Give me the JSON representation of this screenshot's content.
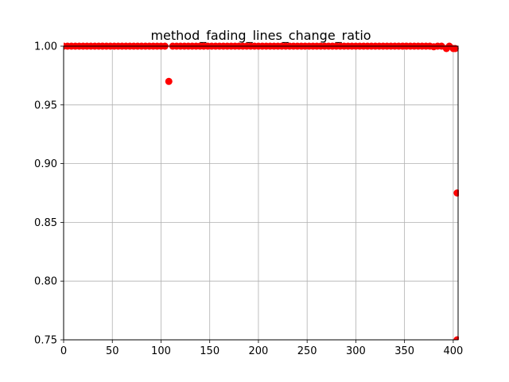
{
  "chart_data": {
    "type": "scatter",
    "title": "method_fading_lines_change_ratio",
    "xlabel": "",
    "ylabel": "",
    "xlim": [
      0,
      405
    ],
    "ylim": [
      0.75,
      1.0
    ],
    "xticks": [
      0,
      50,
      100,
      150,
      200,
      250,
      300,
      350,
      400
    ],
    "yticks": [
      0.75,
      0.8,
      0.85,
      0.9,
      0.95,
      1.0
    ],
    "xtick_labels": [
      "0",
      "50",
      "100",
      "150",
      "200",
      "250",
      "300",
      "350",
      "400"
    ],
    "ytick_labels": [
      "0.75",
      "0.80",
      "0.85",
      "0.90",
      "0.95",
      "1.00"
    ],
    "grid": true,
    "marker_color": "#ff0000",
    "series": [
      {
        "points": [
          [
            0,
            1.0
          ],
          [
            4,
            1.0
          ],
          [
            8,
            1.0
          ],
          [
            12,
            1.0
          ],
          [
            16,
            1.0
          ],
          [
            20,
            1.0
          ],
          [
            24,
            1.0
          ],
          [
            28,
            1.0
          ],
          [
            32,
            1.0
          ],
          [
            36,
            1.0
          ],
          [
            40,
            1.0
          ],
          [
            44,
            1.0
          ],
          [
            48,
            1.0
          ],
          [
            52,
            1.0
          ],
          [
            56,
            1.0
          ],
          [
            60,
            1.0
          ],
          [
            64,
            1.0
          ],
          [
            68,
            1.0
          ],
          [
            72,
            1.0
          ],
          [
            76,
            1.0
          ],
          [
            80,
            1.0
          ],
          [
            84,
            1.0
          ],
          [
            88,
            1.0
          ],
          [
            92,
            1.0
          ],
          [
            96,
            1.0
          ],
          [
            100,
            1.0
          ],
          [
            104,
            1.0
          ],
          [
            108,
            0.97
          ],
          [
            112,
            1.0
          ],
          [
            116,
            1.0
          ],
          [
            120,
            1.0
          ],
          [
            124,
            1.0
          ],
          [
            128,
            1.0
          ],
          [
            132,
            1.0
          ],
          [
            136,
            1.0
          ],
          [
            140,
            1.0
          ],
          [
            144,
            1.0
          ],
          [
            148,
            1.0
          ],
          [
            152,
            1.0
          ],
          [
            156,
            1.0
          ],
          [
            160,
            1.0
          ],
          [
            164,
            1.0
          ],
          [
            168,
            1.0
          ],
          [
            172,
            1.0
          ],
          [
            176,
            1.0
          ],
          [
            180,
            1.0
          ],
          [
            184,
            1.0
          ],
          [
            188,
            1.0
          ],
          [
            192,
            1.0
          ],
          [
            196,
            1.0
          ],
          [
            200,
            1.0
          ],
          [
            204,
            1.0
          ],
          [
            208,
            1.0
          ],
          [
            212,
            1.0
          ],
          [
            216,
            1.0
          ],
          [
            220,
            1.0
          ],
          [
            224,
            1.0
          ],
          [
            228,
            1.0
          ],
          [
            232,
            1.0
          ],
          [
            236,
            1.0
          ],
          [
            240,
            1.0
          ],
          [
            244,
            1.0
          ],
          [
            248,
            1.0
          ],
          [
            252,
            1.0
          ],
          [
            256,
            1.0
          ],
          [
            260,
            1.0
          ],
          [
            264,
            1.0
          ],
          [
            268,
            1.0
          ],
          [
            272,
            1.0
          ],
          [
            276,
            1.0
          ],
          [
            280,
            1.0
          ],
          [
            284,
            1.0
          ],
          [
            288,
            1.0
          ],
          [
            292,
            1.0
          ],
          [
            296,
            1.0
          ],
          [
            300,
            1.0
          ],
          [
            304,
            1.0
          ],
          [
            308,
            1.0
          ],
          [
            312,
            1.0
          ],
          [
            316,
            1.0
          ],
          [
            320,
            1.0
          ],
          [
            324,
            1.0
          ],
          [
            328,
            1.0
          ],
          [
            332,
            1.0
          ],
          [
            336,
            1.0
          ],
          [
            340,
            1.0
          ],
          [
            344,
            1.0
          ],
          [
            348,
            1.0
          ],
          [
            352,
            1.0
          ],
          [
            356,
            1.0
          ],
          [
            360,
            1.0
          ],
          [
            364,
            1.0
          ],
          [
            368,
            1.0
          ],
          [
            372,
            1.0
          ],
          [
            376,
            1.0
          ],
          [
            380,
            0.9995
          ],
          [
            384,
            1.0
          ],
          [
            388,
            1.0
          ],
          [
            393,
            0.998
          ],
          [
            396,
            1.0
          ],
          [
            400,
            0.998
          ],
          [
            402,
            0.998
          ],
          [
            404,
            0.875
          ],
          [
            404,
            0.75
          ]
        ]
      }
    ]
  }
}
